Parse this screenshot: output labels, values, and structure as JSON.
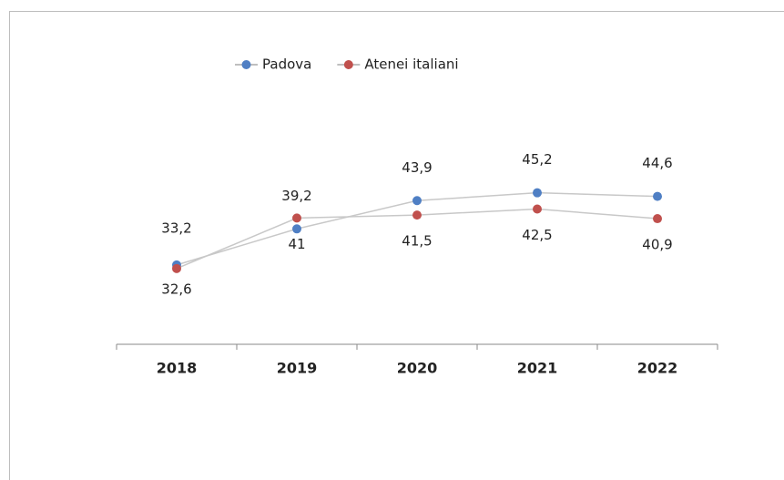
{
  "chart_data": {
    "type": "line",
    "categories": [
      "2018",
      "2019",
      "2020",
      "2021",
      "2022"
    ],
    "series": [
      {
        "name": "Padova",
        "color": "#4f7fc4",
        "values": [
          33.2,
          39.2,
          43.9,
          45.2,
          44.6
        ],
        "value_labels": [
          "33,2",
          "39,2",
          "43,9",
          "45,2",
          "44,6"
        ]
      },
      {
        "name": "Atenei italiani",
        "color": "#c0504d",
        "values": [
          32.6,
          41,
          41.5,
          42.5,
          40.9
        ],
        "value_labels": [
          "32,6",
          "41",
          "41,5",
          "42,5",
          "40,9"
        ]
      }
    ],
    "ylim": [
      20,
      50
    ],
    "legend": "top"
  }
}
